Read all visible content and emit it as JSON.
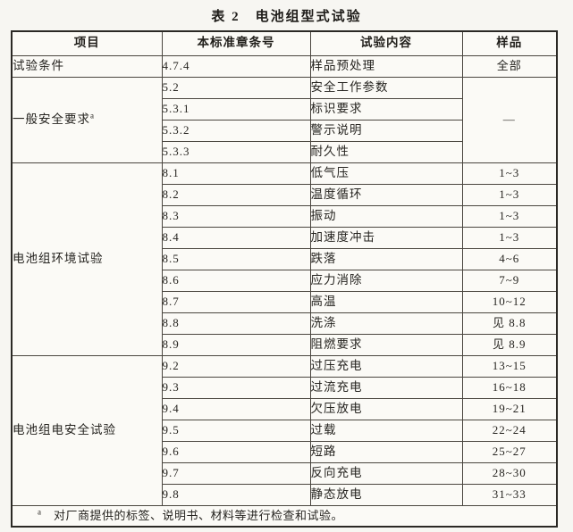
{
  "page": {
    "title": "表 2　电池组型式试验"
  },
  "table": {
    "headers": {
      "item": "项目",
      "clause": "本标准章条号",
      "content": "试验内容",
      "sample": "样品"
    },
    "groups": [
      {
        "label": "试验条件",
        "rowspan": 1
      },
      {
        "label": "一般安全要求",
        "sup": "a",
        "rowspan": 4,
        "sample": "—"
      },
      {
        "label": "电池组环境试验",
        "rowspan": 9
      },
      {
        "label": "电池组电安全试验",
        "rowspan": 7
      }
    ],
    "rows": [
      {
        "clause": "4.7.4",
        "content": "样品预处理",
        "sample": "全部"
      },
      {
        "clause": "5.2",
        "content": "安全工作参数"
      },
      {
        "clause": "5.3.1",
        "content": "标识要求"
      },
      {
        "clause": "5.3.2",
        "content": "警示说明"
      },
      {
        "clause": "5.3.3",
        "content": "耐久性"
      },
      {
        "clause": "8.1",
        "content": "低气压",
        "sample": "1~3"
      },
      {
        "clause": "8.2",
        "content": "温度循环",
        "sample": "1~3"
      },
      {
        "clause": "8.3",
        "content": "振动",
        "sample": "1~3"
      },
      {
        "clause": "8.4",
        "content": "加速度冲击",
        "sample": "1~3"
      },
      {
        "clause": "8.5",
        "content": "跌落",
        "sample": "4~6"
      },
      {
        "clause": "8.6",
        "content": "应力消除",
        "sample": "7~9"
      },
      {
        "clause": "8.7",
        "content": "高温",
        "sample": "10~12"
      },
      {
        "clause": "8.8",
        "content": "洗涤",
        "sample": "见 8.8"
      },
      {
        "clause": "8.9",
        "content": "阻燃要求",
        "sample": "见 8.9"
      },
      {
        "clause": "9.2",
        "content": "过压充电",
        "sample": "13~15"
      },
      {
        "clause": "9.3",
        "content": "过流充电",
        "sample": "16~18"
      },
      {
        "clause": "9.4",
        "content": "欠压放电",
        "sample": "19~21"
      },
      {
        "clause": "9.5",
        "content": "过载",
        "sample": "22~24"
      },
      {
        "clause": "9.6",
        "content": "短路",
        "sample": "25~27"
      },
      {
        "clause": "9.7",
        "content": "反向充电",
        "sample": "28~30"
      },
      {
        "clause": "9.8",
        "content": "静态放电",
        "sample": "31~33"
      }
    ]
  },
  "footnote": {
    "marker": "a",
    "text": "对厂商提供的标签、说明书、材料等进行检查和试验。"
  }
}
